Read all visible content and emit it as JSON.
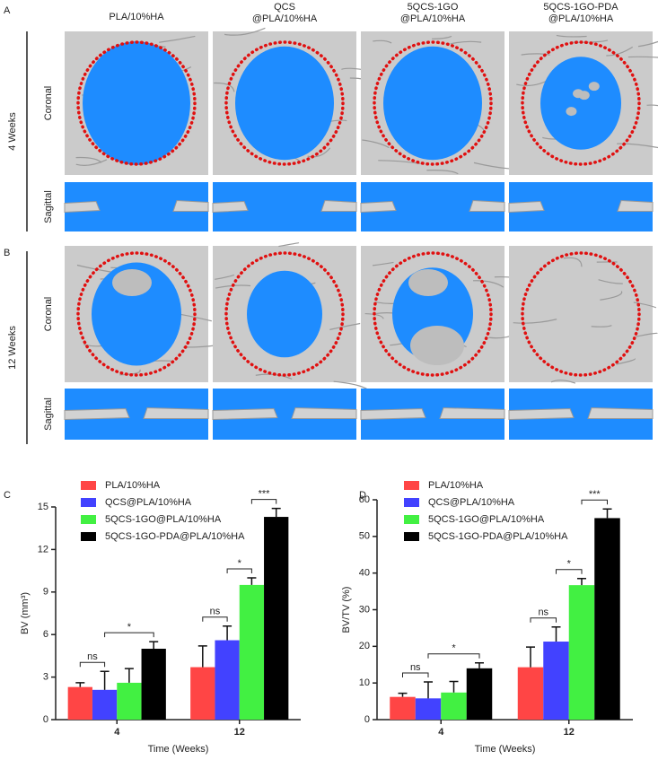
{
  "panel_labels": [
    "A",
    "B",
    "C",
    "D"
  ],
  "columns": [
    [
      "PLA/10%HA"
    ],
    [
      "QCS",
      "@PLA/10%HA"
    ],
    [
      "5QCS-1GO",
      "@PLA/10%HA"
    ],
    [
      "5QCS-1GO-PDA",
      "@PLA/10%HA"
    ]
  ],
  "rows": [
    "4 Weeks",
    "12 Weeks"
  ],
  "views": [
    "Coronal",
    "Sagittal"
  ],
  "chart_data": [
    {
      "type": "bar",
      "ylabel": "BV (mm³)",
      "xlabel": "Time (Weeks)",
      "categories": [
        "4",
        "12"
      ],
      "series": [
        {
          "name": "PLA/10%HA",
          "color": "#ff4545",
          "values": [
            2.3,
            3.7
          ],
          "errors": [
            0.3,
            1.5
          ]
        },
        {
          "name": "QCS@PLA/10%HA",
          "color": "#4242ff",
          "values": [
            2.1,
            5.6
          ],
          "errors": [
            1.3,
            1.0
          ]
        },
        {
          "name": "5QCS-1GO@PLA/10%HA",
          "color": "#42f042",
          "values": [
            2.6,
            9.5
          ],
          "errors": [
            1.0,
            0.5
          ]
        },
        {
          "name": "5QCS-1GO-PDA@PLA/10%HA",
          "color": "#000000",
          "values": [
            5.0,
            14.3
          ],
          "errors": [
            0.5,
            0.6
          ]
        }
      ],
      "ylim": [
        0,
        15
      ],
      "yticks": [
        0,
        3,
        6,
        9,
        12,
        15
      ],
      "annotations": [
        {
          "text": "ns"
        },
        {
          "text": "*"
        },
        {
          "text": "ns"
        },
        {
          "text": "*"
        },
        {
          "text": "***"
        }
      ]
    },
    {
      "type": "bar",
      "ylabel": "BV/TV (%)",
      "xlabel": "Time (Weeks)",
      "categories": [
        "4",
        "12"
      ],
      "series": [
        {
          "name": "PLA/10%HA",
          "color": "#ff4545",
          "values": [
            6.2,
            14.3
          ],
          "errors": [
            1.0,
            5.5
          ]
        },
        {
          "name": "QCS@PLA/10%HA",
          "color": "#4242ff",
          "values": [
            5.8,
            21.3
          ],
          "errors": [
            4.5,
            4.0
          ]
        },
        {
          "name": "5QCS-1GO@PLA/10%HA",
          "color": "#42f042",
          "values": [
            7.4,
            36.7
          ],
          "errors": [
            3.0,
            1.8
          ]
        },
        {
          "name": "5QCS-1GO-PDA@PLA/10%HA",
          "color": "#000000",
          "values": [
            14.0,
            55.0
          ],
          "errors": [
            1.5,
            2.5
          ]
        }
      ],
      "ylim": [
        0,
        60
      ],
      "yticks": [
        0,
        10,
        20,
        30,
        40,
        50,
        60
      ],
      "annotations": [
        {
          "text": "ns"
        },
        {
          "text": "*"
        },
        {
          "text": "ns"
        },
        {
          "text": "*"
        },
        {
          "text": "***"
        }
      ]
    }
  ]
}
